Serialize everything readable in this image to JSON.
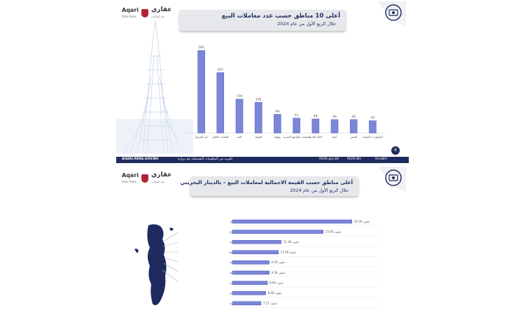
{
  "brand": {
    "name_en": "Aqari",
    "sub_en": "Data Bank",
    "name_ar": "عقاري",
    "sub_ar": "بنك البيانات"
  },
  "footer": {
    "website": "AQARI.RERA.GOV.BH",
    "info_text": "للمزيد من المعلومات التفصيلية، قم بزيارة",
    "social1": "RERA.gov.bh",
    "social2": "RERA.BH",
    "social3": "ReraBH"
  },
  "page_number": "6",
  "colors": {
    "bar": "#7c86d8",
    "bar_edge": "#4a56b8",
    "navy": "#1f2b5e"
  },
  "chart_data": [
    {
      "type": "bar",
      "title": "أعلى 10 مناطق حسب عدد معاملات البيع",
      "subtitle": "خلال الربع الأول من عام 2024",
      "categories": [
        "دبل الصرايل",
        "المنامة / الفاتح",
        "الحد",
        "الهملة",
        "بوقوة",
        "المنامة / الواجهة البحرية",
        "البلاد القديم",
        "أموا",
        "الجفير",
        "البوكوارة / المنامة"
      ],
      "values": [
        283,
        207,
        116,
        105,
        64,
        51,
        48,
        46,
        46,
        42
      ],
      "value_labels": [
        "283",
        "207",
        "116",
        "105",
        "64",
        "51",
        "48",
        "46",
        "46",
        "42"
      ],
      "ylim": [
        0,
        300
      ]
    },
    {
      "type": "bar",
      "orientation": "horizontal",
      "title": "أعلى مناطق حسب القيمة الاجمالية لمعاملات البيع – بالدينار البحريني",
      "subtitle": "خلال الربع الأول من عام 2024",
      "categories": [
        "دبل الصرايل",
        "المنامة / الفاتح",
        "الحد",
        "أموا",
        "السابية",
        "الهملة",
        "رأس زوبد",
        "الجنبية",
        "المنامة / الواجهة البحرية"
      ],
      "values": [
        30.36,
        23.05,
        12.38,
        11.68,
        9.34,
        9.36,
        8.9,
        8.46,
        7.27
      ],
      "value_labels": [
        "30.36 مليون",
        "23.05 مليون",
        "12.38 مليون",
        "11.68 مليون",
        "9.34 مليون",
        "9.36 مليون",
        "8.90 مليون",
        "8.46 مليون",
        "7.27 مليون"
      ],
      "xlim": [
        0,
        32
      ]
    }
  ]
}
